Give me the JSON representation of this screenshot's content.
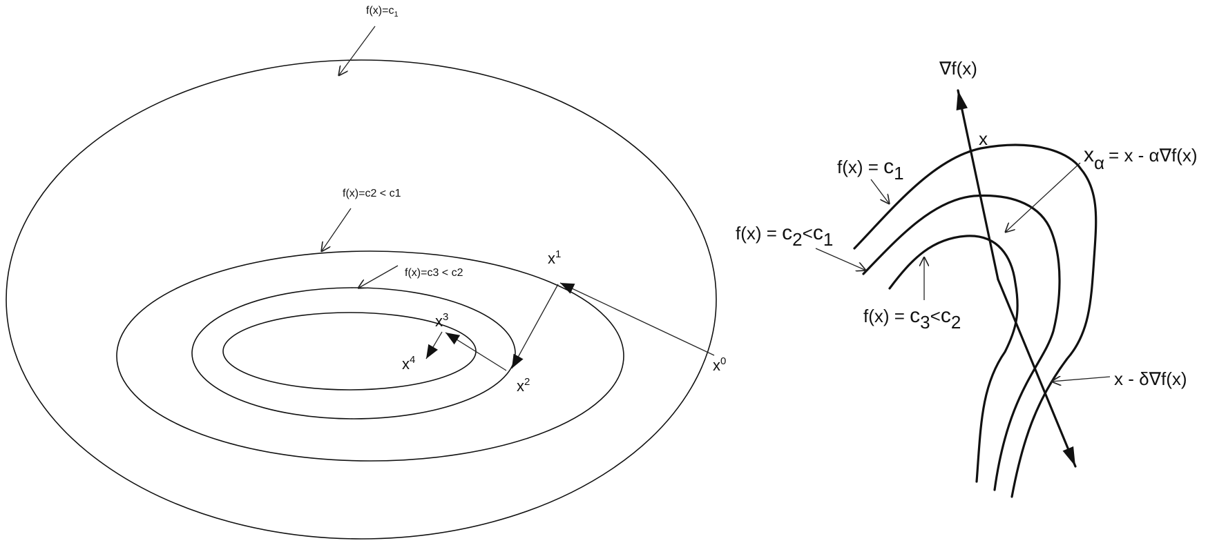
{
  "left_panel": {
    "contour_labels": {
      "c1": {
        "base": "f(x)=c",
        "sub": "1"
      },
      "c2": "f(x)=c2 < c1",
      "c3": "f(x)=c3 < c2"
    },
    "iterates": [
      {
        "base": "x",
        "sup": "0"
      },
      {
        "base": "x",
        "sup": "1"
      },
      {
        "base": "x",
        "sup": "2"
      },
      {
        "base": "x",
        "sup": "3"
      },
      {
        "base": "x",
        "sup": "4"
      }
    ]
  },
  "right_panel": {
    "gradient": "∇f(x)",
    "point": "x",
    "c1": {
      "pre": "f(x) = ",
      "c": "c",
      "sub": "1"
    },
    "c2": {
      "pre": "f(x) = ",
      "c": "c",
      "sub": "2",
      "lt": "<",
      "c2": "c",
      "sub2": "1"
    },
    "c3": {
      "pre": "f(x) = ",
      "c": "c",
      "sub": "3",
      "lt": "<",
      "c2": "c",
      "sub2": "2"
    },
    "x_alpha": {
      "x": "x",
      "sub": "α",
      "rhs": "= x - α∇f(x)"
    },
    "x_delta": "x - δ∇f(x)"
  }
}
